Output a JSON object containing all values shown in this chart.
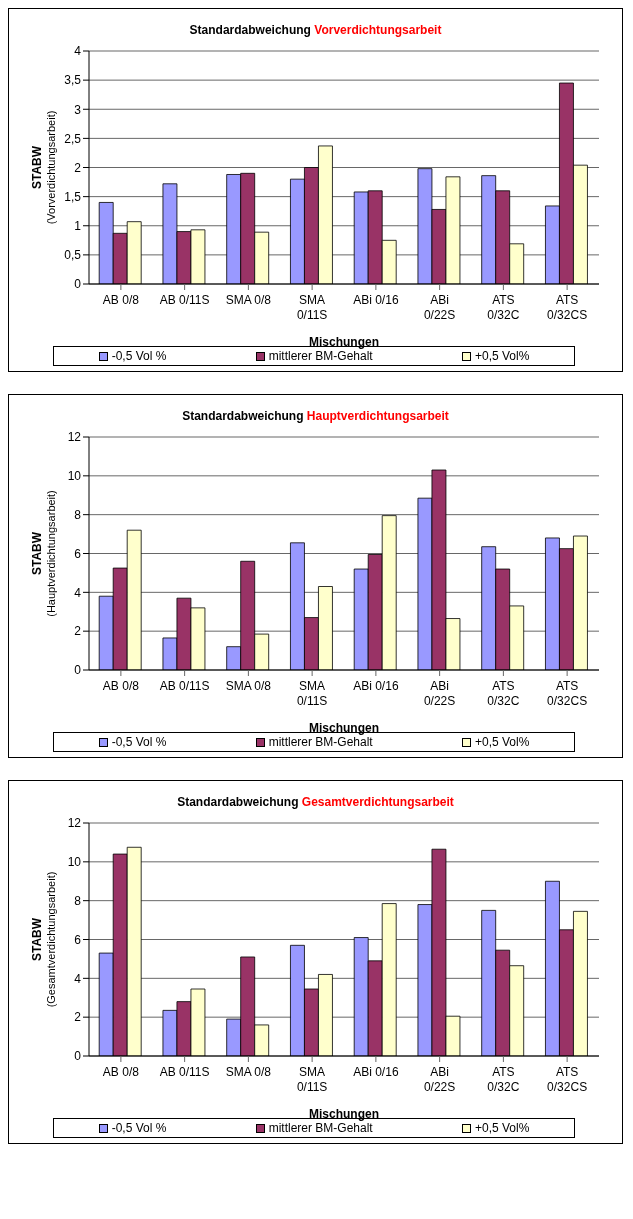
{
  "chart_data": [
    {
      "type": "bar",
      "title": "Standardabweichung Vorverdichtungsarbeit",
      "xlabel": "Mischungen",
      "ylabel": "STABW\n(Vorverdichtungsarbeit)",
      "categories": [
        "AB 0/8",
        "AB 0/11S",
        "SMA 0/8",
        "SMA 0/11S",
        "ABi 0/16",
        "ABi 0/22S",
        "ATS 0/32C",
        "ATS 0/32CS"
      ],
      "ylim": [
        0,
        4
      ],
      "yticks": [
        0,
        {
          "value": 0.5,
          "label": "0,5"
        },
        1,
        {
          "value": 1.5,
          "label": "1,5"
        },
        2,
        {
          "value": 2.5,
          "label": "2,5"
        },
        3,
        {
          "value": 3.5,
          "label": "3,5"
        },
        4
      ],
      "grid": "y",
      "legend": "bottom",
      "series": [
        {
          "name": "-0,5 Vol %",
          "color": "#9999ff",
          "values": [
            1.4,
            1.72,
            1.88,
            1.8,
            1.58,
            1.98,
            1.86,
            1.34
          ]
        },
        {
          "name": "mittlerer BM-Gehalt",
          "color": "#993366",
          "values": [
            0.87,
            0.9,
            1.9,
            2.0,
            1.6,
            1.28,
            1.6,
            3.45
          ]
        },
        {
          "name": "+0,5 Vol%",
          "color": "#ffffcc",
          "values": [
            1.07,
            0.93,
            0.89,
            2.37,
            0.75,
            1.84,
            0.69,
            2.04
          ]
        }
      ]
    },
    {
      "type": "bar",
      "title": "Standardabweichung Hauptverdichtungsarbeit",
      "xlabel": "Mischungen",
      "ylabel": "STABW\n(Hauptverdichtungsarbeit)",
      "categories": [
        "AB 0/8",
        "AB 0/11S",
        "SMA 0/8",
        "SMA 0/11S",
        "ABi 0/16",
        "ABi 0/22S",
        "ATS 0/32C",
        "ATS 0/32CS"
      ],
      "ylim": [
        0,
        12
      ],
      "yticks": [
        0,
        2,
        4,
        6,
        8,
        10,
        12
      ],
      "grid": "y",
      "legend": "bottom",
      "series": [
        {
          "name": "-0,5 Vol %",
          "color": "#9999ff",
          "values": [
            3.8,
            1.65,
            1.2,
            6.55,
            5.2,
            8.85,
            6.35,
            6.8
          ]
        },
        {
          "name": "mittlerer BM-Gehalt",
          "color": "#993366",
          "values": [
            5.25,
            3.7,
            5.6,
            2.7,
            5.95,
            10.3,
            5.2,
            6.25
          ]
        },
        {
          "name": "+0,5 Vol%",
          "color": "#ffffcc",
          "values": [
            7.2,
            3.2,
            1.85,
            4.3,
            7.95,
            2.65,
            3.3,
            6.9
          ]
        }
      ]
    },
    {
      "type": "bar",
      "title": "Standardabweichung Gesamtverdichtungsarbeit",
      "xlabel": "Mischungen",
      "ylabel": "STABW\n(Gesamtverdichtungsarbeit)",
      "categories": [
        "AB 0/8",
        "AB 0/11S",
        "SMA 0/8",
        "SMA 0/11S",
        "ABi 0/16",
        "ABi 0/22S",
        "ATS 0/32C",
        "ATS 0/32CS"
      ],
      "ylim": [
        0,
        12
      ],
      "yticks": [
        0,
        2,
        4,
        6,
        8,
        10,
        12
      ],
      "grid": "y",
      "legend": "bottom",
      "series": [
        {
          "name": "-0,5 Vol %",
          "color": "#9999ff",
          "values": [
            5.3,
            2.35,
            1.9,
            5.7,
            6.1,
            7.8,
            7.5,
            9.0
          ]
        },
        {
          "name": "mittlerer BM-Gehalt",
          "color": "#993366",
          "values": [
            10.4,
            2.8,
            5.1,
            3.45,
            4.9,
            10.65,
            5.45,
            6.5
          ]
        },
        {
          "name": "+0,5 Vol%",
          "color": "#ffffcc",
          "values": [
            10.75,
            3.45,
            1.6,
            4.2,
            7.85,
            2.05,
            4.65,
            7.45
          ]
        }
      ]
    }
  ]
}
